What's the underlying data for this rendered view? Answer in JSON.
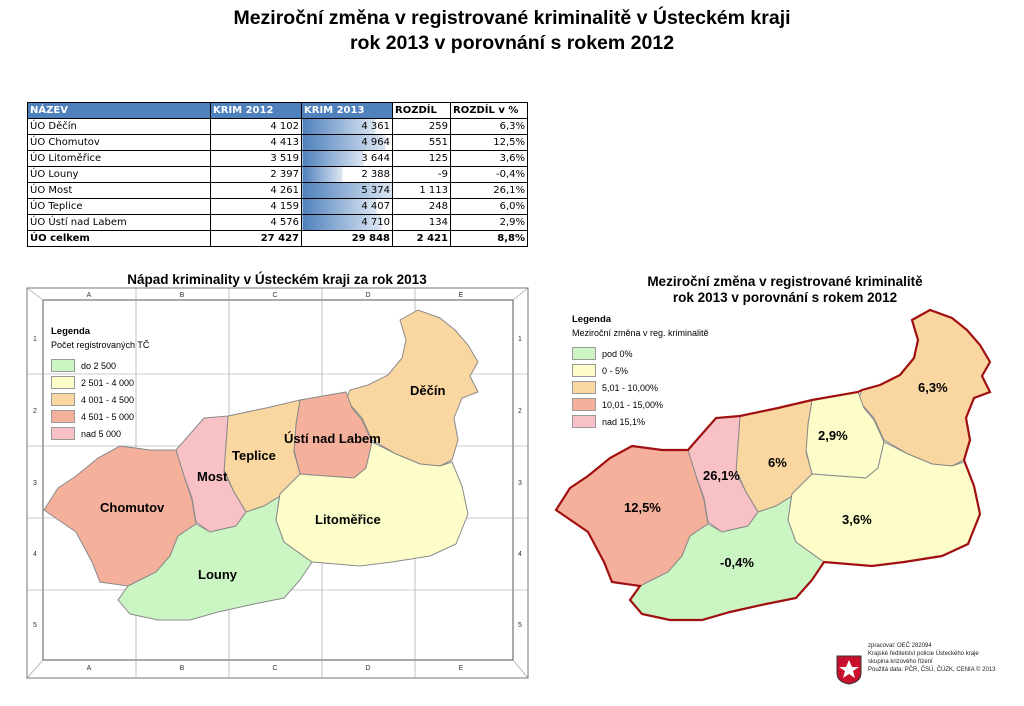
{
  "page": {
    "title_line1": "Meziroční změna v registrované kriminalitě v Ústeckém kraji",
    "title_line2": "rok 2013 v porovnání s rokem 2012"
  },
  "table": {
    "headers": [
      "NÁZEV",
      "KRIM 2012",
      "KRIM 2013",
      "ROZDÍL",
      "ROZDÍL v %"
    ],
    "rows": [
      [
        "ÚO Děčín",
        "4 102",
        "4 361",
        "259",
        "6,3%"
      ],
      [
        "ÚO Chomutov",
        "4 413",
        "4 964",
        "551",
        "12,5%"
      ],
      [
        "ÚO Litoměřice",
        "3 519",
        "3 644",
        "125",
        "3,6%"
      ],
      [
        "ÚO Louny",
        "2 397",
        "2 388",
        "-9",
        "-0,4%"
      ],
      [
        "ÚO Most",
        "4 261",
        "5 374",
        "1 113",
        "26,1%"
      ],
      [
        "ÚO Teplice",
        "4 159",
        "4 407",
        "248",
        "6,0%"
      ],
      [
        "ÚO Ústí nad Labem",
        "4 576",
        "4 710",
        "134",
        "2,9%"
      ]
    ],
    "total": [
      "ÚO celkem",
      "27 427",
      "29 848",
      "2 421",
      "8,8%"
    ],
    "krim2013_values": [
      4361,
      4964,
      3644,
      2388,
      5374,
      4407,
      4710
    ],
    "bar_color": "#4f81bd"
  },
  "left_map": {
    "title": "Nápad kriminality v Ústeckém kraji za rok 2013",
    "legend_title": "Legenda",
    "legend_subtitle": "Počet registrovaných TČ",
    "legend": [
      {
        "label": "do 2 500",
        "color": "#ccf5c4"
      },
      {
        "label": "2 501 - 4 000",
        "color": "#fdfdc9"
      },
      {
        "label": "4 001 - 4 500",
        "color": "#fad7a0"
      },
      {
        "label": "4 501 - 5 000",
        "color": "#f5b09b"
      },
      {
        "label": "nad 5 000",
        "color": "#f7c1c6"
      }
    ],
    "col_labels": [
      "A",
      "B",
      "C",
      "D",
      "E"
    ],
    "row_labels": [
      "1",
      "2",
      "3",
      "4",
      "5"
    ],
    "regions": [
      {
        "id": "decin",
        "label": "Děčín",
        "color": "#fad7a0"
      },
      {
        "id": "usti",
        "label": "Ústí nad Labem",
        "color": "#f5b09b"
      },
      {
        "id": "teplice",
        "label": "Teplice",
        "color": "#fad7a0"
      },
      {
        "id": "most",
        "label": "Most",
        "color": "#f7c1c6"
      },
      {
        "id": "chomutov",
        "label": "Chomutov",
        "color": "#f5b09b"
      },
      {
        "id": "louny",
        "label": "Louny",
        "color": "#ccf5c4"
      },
      {
        "id": "litomerice",
        "label": "Litoměřice",
        "color": "#fdfdc9"
      }
    ]
  },
  "right_map": {
    "title_line1": "Meziroční změna v registrované kriminalitě",
    "title_line2": "rok 2013 v porovnání s rokem 2012",
    "legend_title": "Legenda",
    "legend_subtitle": "Meziroční změna v reg. kriminalitě",
    "legend": [
      {
        "label": "pod 0%",
        "color": "#ccf5c4"
      },
      {
        "label": "0 - 5%",
        "color": "#fdfdc9"
      },
      {
        "label": "5,01 - 10,00%",
        "color": "#fad7a0"
      },
      {
        "label": "10,01 - 15,00%",
        "color": "#f5b09b"
      },
      {
        "label": "nad 15,1%",
        "color": "#f7c1c6"
      }
    ],
    "regions": [
      {
        "id": "decin",
        "label": "6,3%",
        "color": "#fad7a0"
      },
      {
        "id": "usti",
        "label": "2,9%",
        "color": "#fdfdc9"
      },
      {
        "id": "teplice",
        "label": "6%",
        "color": "#fad7a0"
      },
      {
        "id": "most",
        "label": "26,1%",
        "color": "#f7c1c6"
      },
      {
        "id": "chomutov",
        "label": "12,5%",
        "color": "#f5b09b"
      },
      {
        "id": "louny",
        "label": "-0,4%",
        "color": "#ccf5c4"
      },
      {
        "id": "litomerice",
        "label": "3,6%",
        "color": "#fdfdc9"
      }
    ],
    "border_color": "#a01010"
  },
  "footer": {
    "lines": [
      "zpracoval: OEČ 282094",
      "Krajské ředitelství policie Ústeckého kraje",
      "skupina krizového řízení",
      "Použitá data: PČR, ČSÚ, ČÚZK, CENIA © 2013"
    ]
  }
}
